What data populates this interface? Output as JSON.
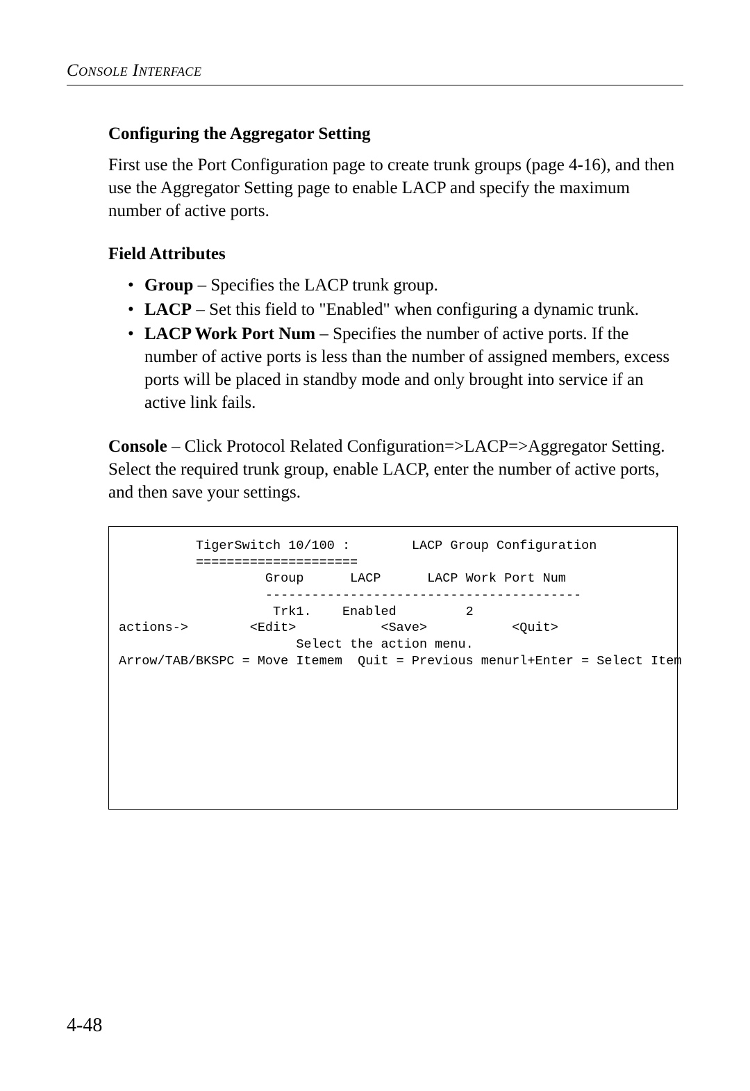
{
  "header": {
    "running_title": "Console Interface"
  },
  "section": {
    "heading": "Configuring the Aggregator Setting",
    "intro_paragraph": "First use the Port Configuration page to create trunk groups (page 4-16), and then use the Aggregator Setting page to enable LACP and specify the maximum number of active ports."
  },
  "field_attributes": {
    "heading": "Field Attributes",
    "items": [
      {
        "term": "Group",
        "desc": " – Specifies the LACP trunk group."
      },
      {
        "term": "LACP",
        "desc": " – Set this field to \"Enabled\" when configuring a dynamic trunk."
      },
      {
        "term": "LACP Work Port Num",
        "desc": " – Specifies the number of active ports. If the number of active ports is less than the number of assigned members, excess ports will be placed in standby mode and only brought into service if an active link fails."
      }
    ]
  },
  "console_instruction": {
    "label": "Console",
    "text": " – Click Protocol Related Configuration=>LACP=>Aggregator Setting. Select the required trunk group, enable LACP, enter the number of active ports, and then save your settings."
  },
  "console_screen": {
    "line1": "          TigerSwitch 10/100 :        LACP Group Configuration",
    "line2": "          =====================",
    "line3": "",
    "line4": "",
    "line5": "                   Group      LACP      LACP Work Port Num",
    "line6": "                   -----------------------------------------",
    "line7": "                    Trk1.    Enabled         2",
    "line8": "",
    "line9": "",
    "line10": "",
    "line11": "",
    "line12": "",
    "line13": "",
    "line14": "",
    "line15": "",
    "line16": "actions->        <Edit>           <Save>           <Quit>",
    "line17": "                       Select the action menu.",
    "line18": "Arrow/TAB/BKSPC = Move Itemem  Quit = Previous menurl+Enter = Select Item"
  },
  "page_number": "4-48"
}
